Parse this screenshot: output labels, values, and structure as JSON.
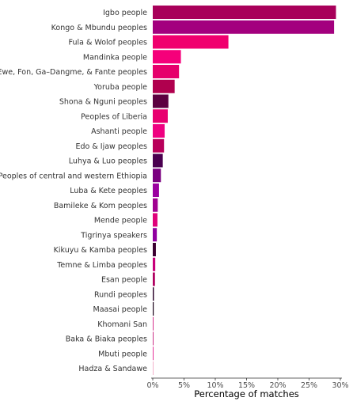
{
  "chart_data": {
    "type": "bar",
    "orientation": "horizontal",
    "xlabel": "Percentage of matches",
    "ylabel": "",
    "xlim": [
      0,
      30
    ],
    "x_ticks": [
      0,
      5,
      10,
      15,
      20,
      25,
      30
    ],
    "x_tick_labels": [
      "0%",
      "5%",
      "10%",
      "15%",
      "20%",
      "25%",
      "30%"
    ],
    "grid": false,
    "legend": "none",
    "categories": [
      "Igbo people",
      "Kongo & Mbundu peoples",
      "Fula & Wolof peoples",
      "Mandinka people",
      "Ewe, Fon, Ga–Dangme, & Fante peoples",
      "Yoruba people",
      "Shona & Nguni peoples",
      "Peoples of Liberia",
      "Ashanti people",
      "Edo & Ijaw peoples",
      "Luhya & Luo peoples",
      "Peoples of central and western Ethiopia",
      "Luba & Kete peoples",
      "Bamileke & Kom peoples",
      "Mende people",
      "Tigrinya speakers",
      "Kikuyu & Kamba peoples",
      "Temne & Limba peoples",
      "Esan people",
      "Rundi peoples",
      "Maasai people",
      "Khomani San",
      "Baka & Biaka peoples",
      "Mbuti people",
      "Hadza & Sandawe"
    ],
    "values": [
      29.3,
      29.0,
      12.1,
      4.5,
      4.2,
      3.5,
      2.5,
      2.4,
      1.9,
      1.8,
      1.6,
      1.3,
      1.0,
      0.8,
      0.75,
      0.65,
      0.5,
      0.4,
      0.35,
      0.18,
      0.15,
      0.1,
      0.1,
      0.05,
      0.03
    ],
    "colors": [
      "#a8005a",
      "#a3007e",
      "#f0006e",
      "#f5007a",
      "#e6006c",
      "#b0004e",
      "#5c0040",
      "#e8006f",
      "#ef0080",
      "#b8005a",
      "#4a0050",
      "#7a0080",
      "#9b00a0",
      "#a00090",
      "#e0007a",
      "#9000a0",
      "#3a0030",
      "#c8007a",
      "#b00060",
      "#2a0028",
      "#1a0018",
      "#cc0070",
      "#c0006a",
      "#e00080",
      "#f0a0c0"
    ]
  }
}
